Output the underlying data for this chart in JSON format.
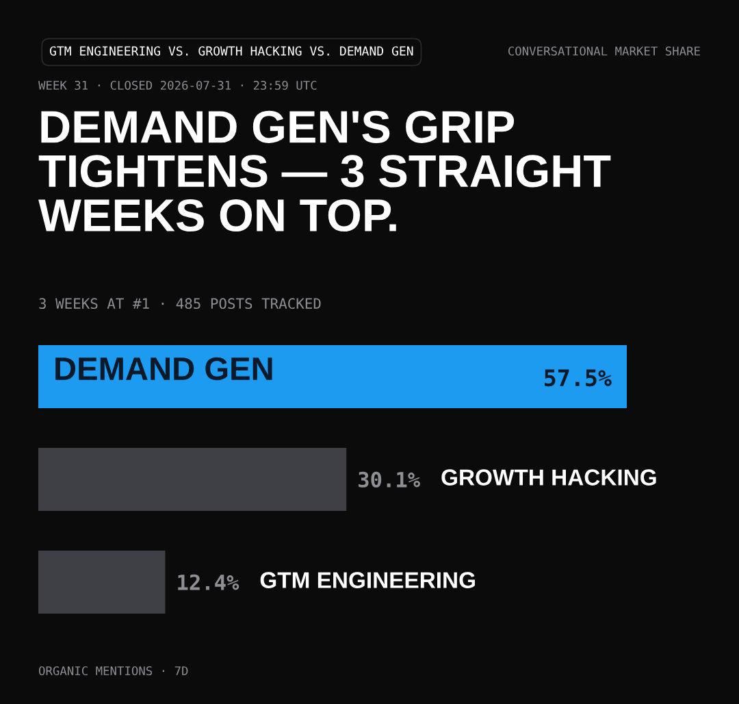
{
  "chart_data": {
    "type": "bar",
    "orientation": "horizontal",
    "title": "DEMAND GEN'S GRIP TIGHTENS — 3 STRAIGHT WEEKS ON TOP.",
    "subtitle": "3 WEEKS AT #1 · 485 POSTS TRACKED",
    "categories": [
      "DEMAND GEN",
      "GROWTH HACKING",
      "GTM ENGINEERING"
    ],
    "values": [
      57.5,
      30.1,
      12.4
    ],
    "colors": [
      "#1d9bf0",
      "#3f3f46",
      "#3f3f46"
    ],
    "value_labels": [
      "57.5%",
      "30.1%",
      "12.4%"
    ],
    "annotations": [
      "GTM ENGINEERING VS. GROWTH HACKING VS. DEMAND GEN",
      "CONVERSATIONAL MARKET SHARE",
      "WEEK 31 · CLOSED 2026-07-31 · 23:59 UTC",
      "ORGANIC MENTIONS · 7D"
    ],
    "legend": false
  }
}
